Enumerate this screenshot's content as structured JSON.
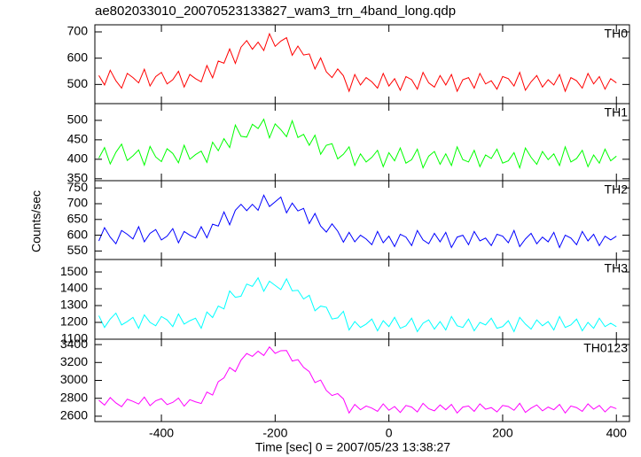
{
  "title": "ae802033010_20070523133827_wam3_trn_4band_long.qdp",
  "xlabel": "Time [sec] 0 = 2007/05/23 13:38:27",
  "ylabel": "Counts/sec",
  "chart_data": [
    {
      "type": "line",
      "label": "TH0",
      "color": "#ff0000",
      "x": [
        -510,
        -500,
        -490,
        -480,
        -470,
        -460,
        -450,
        -440,
        -430,
        -420,
        -410,
        -400,
        -390,
        -380,
        -370,
        -360,
        -350,
        -340,
        -330,
        -320,
        -310,
        -300,
        -290,
        -280,
        -270,
        -260,
        -250,
        -240,
        -230,
        -220,
        -210,
        -200,
        -190,
        -180,
        -170,
        -160,
        -150,
        -140,
        -130,
        -120,
        -110,
        -100,
        -90,
        -80,
        -70,
        -60,
        -50,
        -40,
        -30,
        -20,
        -10,
        0,
        10,
        20,
        30,
        40,
        50,
        60,
        70,
        80,
        90,
        100,
        110,
        120,
        130,
        140,
        150,
        160,
        170,
        180,
        190,
        200,
        210,
        220,
        230,
        240,
        250,
        260,
        270,
        280,
        290,
        300,
        310,
        320,
        330,
        340,
        350,
        360,
        370,
        380,
        390,
        400
      ],
      "values": [
        534,
        498,
        554,
        514,
        486,
        542,
        526,
        506,
        558,
        494,
        530,
        546,
        502,
        518,
        550,
        490,
        538,
        522,
        510,
        572,
        525,
        589,
        581,
        635,
        580,
        642,
        667,
        634,
        661,
        629,
        693,
        645,
        665,
        678,
        611,
        646,
        612,
        616,
        559,
        601,
        548,
        526,
        559,
        533,
        474,
        538,
        498,
        526,
        510,
        486,
        542,
        494,
        522,
        478,
        530,
        518,
        482,
        546,
        506,
        490,
        534,
        498,
        538,
        474,
        518,
        526,
        486,
        542,
        502,
        514,
        482,
        530,
        522,
        494,
        546,
        478,
        510,
        534,
        490,
        518,
        498,
        538,
        474,
        526,
        514,
        486,
        542,
        502,
        530,
        482,
        522,
        506
      ],
      "xlim": [
        -517,
        423
      ],
      "ylim": [
        427,
        727
      ],
      "xticks": [
        -400,
        -200,
        0,
        200,
        400
      ],
      "yticks": [
        500,
        600,
        700
      ]
    },
    {
      "type": "line",
      "label": "TH1",
      "color": "#00ff00",
      "x": [
        -510,
        -500,
        -490,
        -480,
        -470,
        -460,
        -450,
        -440,
        -430,
        -420,
        -410,
        -400,
        -390,
        -380,
        -370,
        -360,
        -350,
        -340,
        -330,
        -320,
        -310,
        -300,
        -290,
        -280,
        -270,
        -260,
        -250,
        -240,
        -230,
        -220,
        -210,
        -200,
        -190,
        -180,
        -170,
        -160,
        -150,
        -140,
        -130,
        -120,
        -110,
        -100,
        -90,
        -80,
        -70,
        -60,
        -50,
        -40,
        -30,
        -20,
        -10,
        0,
        10,
        20,
        30,
        40,
        50,
        60,
        70,
        80,
        90,
        100,
        110,
        120,
        130,
        140,
        150,
        160,
        170,
        180,
        190,
        200,
        210,
        220,
        230,
        240,
        250,
        260,
        270,
        280,
        290,
        300,
        310,
        320,
        330,
        340,
        350,
        360,
        370,
        380,
        390,
        400
      ],
      "values": [
        403,
        430,
        388,
        418,
        439,
        397,
        409,
        424,
        385,
        433,
        406,
        394,
        427,
        415,
        391,
        436,
        400,
        412,
        421,
        392,
        444,
        422,
        453,
        430,
        488,
        459,
        457,
        490,
        479,
        503,
        455,
        491,
        476,
        458,
        499,
        456,
        464,
        436,
        462,
        413,
        436,
        440,
        401,
        413,
        432,
        384,
        414,
        393,
        405,
        423,
        381,
        417,
        396,
        429,
        390,
        399,
        426,
        378,
        408,
        420,
        387,
        414,
        384,
        432,
        399,
        393,
        423,
        381,
        411,
        402,
        426,
        390,
        396,
        417,
        378,
        429,
        405,
        387,
        420,
        399,
        414,
        384,
        432,
        393,
        402,
        423,
        381,
        411,
        390,
        426,
        396,
        408
      ],
      "xlim": [
        -517,
        423
      ],
      "ylim": [
        345,
        543
      ],
      "xticks": [
        -400,
        -200,
        0,
        200,
        400
      ],
      "yticks": [
        350,
        400,
        450,
        500
      ]
    },
    {
      "type": "line",
      "label": "TH2",
      "color": "#0000ff",
      "x": [
        -510,
        -500,
        -490,
        -480,
        -470,
        -460,
        -450,
        -440,
        -430,
        -420,
        -410,
        -400,
        -390,
        -380,
        -370,
        -360,
        -350,
        -340,
        -330,
        -320,
        -310,
        -300,
        -290,
        -280,
        -270,
        -260,
        -250,
        -240,
        -230,
        -220,
        -210,
        -200,
        -190,
        -180,
        -170,
        -160,
        -150,
        -140,
        -130,
        -120,
        -110,
        -100,
        -90,
        -80,
        -70,
        -60,
        -50,
        -40,
        -30,
        -20,
        -10,
        0,
        10,
        20,
        30,
        40,
        50,
        60,
        70,
        80,
        90,
        100,
        110,
        120,
        130,
        140,
        150,
        160,
        170,
        180,
        190,
        200,
        210,
        220,
        230,
        240,
        250,
        260,
        270,
        280,
        290,
        300,
        310,
        320,
        330,
        340,
        350,
        360,
        370,
        380,
        390,
        400
      ],
      "values": [
        582,
        624,
        594,
        573,
        615,
        603,
        588,
        627,
        579,
        606,
        618,
        585,
        597,
        621,
        576,
        612,
        600,
        591,
        627,
        592,
        635,
        629,
        674,
        633,
        679,
        698,
        678,
        698,
        679,
        727,
        691,
        706,
        721,
        671,
        702,
        677,
        685,
        637,
        669,
        629,
        610,
        636,
        613,
        578,
        609,
        579,
        600,
        588,
        570,
        612,
        576,
        597,
        564,
        603,
        594,
        567,
        615,
        585,
        573,
        606,
        579,
        609,
        561,
        594,
        600,
        570,
        612,
        582,
        591,
        567,
        603,
        597,
        576,
        615,
        564,
        588,
        606,
        573,
        594,
        579,
        609,
        561,
        600,
        591,
        570,
        612,
        582,
        603,
        567,
        597,
        585,
        597
      ],
      "xlim": [
        -517,
        423
      ],
      "ylim": [
        523,
        773
      ],
      "xticks": [
        -400,
        -200,
        0,
        200,
        400
      ],
      "yticks": [
        550,
        600,
        650,
        700,
        750
      ]
    },
    {
      "type": "line",
      "label": "TH3",
      "color": "#00ffff",
      "x": [
        -510,
        -500,
        -490,
        -480,
        -470,
        -460,
        -450,
        -440,
        -430,
        -420,
        -410,
        -400,
        -390,
        -380,
        -370,
        -360,
        -350,
        -340,
        -330,
        -320,
        -310,
        -300,
        -290,
        -280,
        -270,
        -260,
        -250,
        -240,
        -230,
        -220,
        -210,
        -200,
        -190,
        -180,
        -170,
        -160,
        -150,
        -140,
        -130,
        -120,
        -110,
        -100,
        -90,
        -80,
        -70,
        -60,
        -50,
        -40,
        -30,
        -20,
        -10,
        0,
        10,
        20,
        30,
        40,
        50,
        60,
        70,
        80,
        90,
        100,
        110,
        120,
        130,
        140,
        150,
        160,
        170,
        180,
        190,
        200,
        210,
        220,
        230,
        240,
        250,
        260,
        270,
        280,
        290,
        300,
        310,
        320,
        330,
        340,
        350,
        360,
        370,
        380,
        390,
        400
      ],
      "values": [
        1240,
        1170,
        1220,
        1255,
        1185,
        1205,
        1230,
        1165,
        1245,
        1200,
        1180,
        1235,
        1215,
        1175,
        1250,
        1190,
        1210,
        1225,
        1165,
        1262,
        1229,
        1297,
        1280,
        1387,
        1349,
        1356,
        1428,
        1414,
        1465,
        1385,
        1445,
        1420,
        1395,
        1459,
        1388,
        1391,
        1339,
        1361,
        1269,
        1297,
        1290,
        1220,
        1227,
        1266,
        1155,
        1205,
        1170,
        1190,
        1220,
        1150,
        1210,
        1175,
        1230,
        1165,
        1180,
        1225,
        1145,
        1195,
        1215,
        1160,
        1205,
        1155,
        1235,
        1180,
        1170,
        1220,
        1150,
        1200,
        1185,
        1225,
        1165,
        1175,
        1210,
        1145,
        1230,
        1190,
        1160,
        1215,
        1180,
        1205,
        1155,
        1235,
        1170,
        1185,
        1220,
        1150,
        1200,
        1165,
        1225,
        1175,
        1195,
        1175
      ],
      "xlim": [
        -517,
        423
      ],
      "ylim": [
        1100,
        1574
      ],
      "xticks": [
        -400,
        -200,
        0,
        200,
        400
      ],
      "yticks": [
        1100,
        1200,
        1300,
        1400,
        1500
      ]
    },
    {
      "type": "line",
      "label": "TH0123",
      "color": "#ff00ff",
      "x": [
        -510,
        -500,
        -490,
        -480,
        -470,
        -460,
        -450,
        -440,
        -430,
        -420,
        -410,
        -400,
        -390,
        -380,
        -370,
        -360,
        -350,
        -340,
        -330,
        -320,
        -310,
        -300,
        -290,
        -280,
        -270,
        -260,
        -250,
        -240,
        -230,
        -220,
        -210,
        -200,
        -190,
        -180,
        -170,
        -160,
        -150,
        -140,
        -130,
        -120,
        -110,
        -100,
        -90,
        -80,
        -70,
        -60,
        -50,
        -40,
        -30,
        -20,
        -10,
        0,
        10,
        20,
        30,
        40,
        50,
        60,
        70,
        80,
        90,
        100,
        110,
        120,
        130,
        140,
        150,
        160,
        170,
        180,
        190,
        200,
        210,
        220,
        230,
        240,
        250,
        260,
        270,
        280,
        290,
        300,
        310,
        320,
        330,
        340,
        350,
        360,
        370,
        380,
        390,
        400
      ],
      "values": [
        2778,
        2724,
        2808,
        2748,
        2706,
        2790,
        2766,
        2736,
        2814,
        2718,
        2772,
        2796,
        2730,
        2754,
        2802,
        2712,
        2784,
        2760,
        2742,
        2870,
        2836,
        2986,
        3028,
        3144,
        3098,
        3226,
        3300,
        3268,
        3326,
        3278,
        3374,
        3302,
        3332,
        3334,
        3216,
        3232,
        3146,
        3098,
        2976,
        3004,
        2888,
        2831,
        2852,
        2794,
        2636,
        2732,
        2672,
        2714,
        2690,
        2654,
        2738,
        2666,
        2708,
        2642,
        2720,
        2702,
        2648,
        2744,
        2684,
        2660,
        2726,
        2672,
        2732,
        2636,
        2702,
        2714,
        2654,
        2738,
        2678,
        2696,
        2648,
        2720,
        2708,
        2666,
        2744,
        2642,
        2690,
        2726,
        2660,
        2702,
        2672,
        2732,
        2636,
        2714,
        2696,
        2654,
        2738,
        2678,
        2720,
        2648,
        2708,
        2684
      ],
      "xlim": [
        -517,
        423
      ],
      "ylim": [
        2540,
        3460
      ],
      "xticks": [
        -400,
        -200,
        0,
        200,
        400
      ],
      "yticks": [
        2600,
        2800,
        3000,
        3200,
        3400
      ]
    }
  ]
}
